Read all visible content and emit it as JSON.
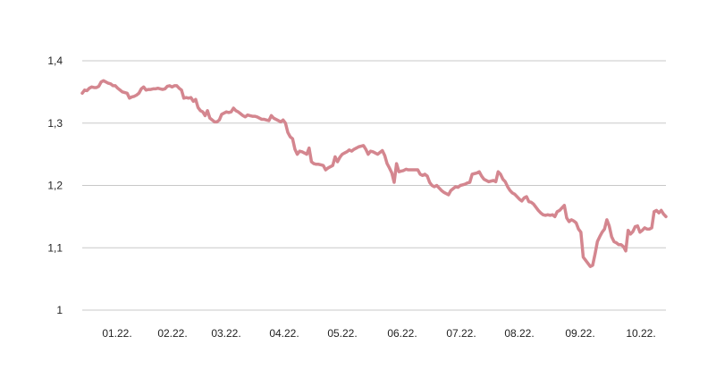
{
  "chart_data": {
    "type": "line",
    "title": "",
    "xlabel": "",
    "ylabel": "",
    "ylim": [
      1.0,
      1.4
    ],
    "yticks": [
      1.0,
      1.1,
      1.2,
      1.3,
      1.4
    ],
    "ytick_labels": [
      "1",
      "1,1",
      "1,2",
      "1,3",
      "1,4"
    ],
    "xtick_labels": [
      "01.22.",
      "02.22.",
      "03.22.",
      "04.22.",
      "05.22.",
      "06.22.",
      "07.22.",
      "08.22.",
      "09.22.",
      "10.22."
    ],
    "grid": "horizontal",
    "line_color": "#d4868f",
    "series": [
      {
        "values": [
          1.348,
          1.353,
          1.352,
          1.356,
          1.358,
          1.357,
          1.357,
          1.359,
          1.366,
          1.368,
          1.366,
          1.364,
          1.363,
          1.36,
          1.36,
          1.356,
          1.353,
          1.35,
          1.349,
          1.348,
          1.34,
          1.342,
          1.343,
          1.345,
          1.348,
          1.355,
          1.358,
          1.353,
          1.354,
          1.354,
          1.355,
          1.355,
          1.356,
          1.355,
          1.354,
          1.355,
          1.359,
          1.36,
          1.358,
          1.36,
          1.36,
          1.356,
          1.353,
          1.34,
          1.341,
          1.34,
          1.341,
          1.335,
          1.338,
          1.325,
          1.32,
          1.318,
          1.312,
          1.32,
          1.308,
          1.305,
          1.302,
          1.302,
          1.305,
          1.314,
          1.316,
          1.318,
          1.317,
          1.318,
          1.324,
          1.32,
          1.318,
          1.315,
          1.312,
          1.31,
          1.313,
          1.312,
          1.311,
          1.311,
          1.31,
          1.308,
          1.306,
          1.306,
          1.305,
          1.304,
          1.312,
          1.308,
          1.306,
          1.304,
          1.302,
          1.305,
          1.3,
          1.285,
          1.278,
          1.275,
          1.258,
          1.25,
          1.255,
          1.254,
          1.252,
          1.25,
          1.26,
          1.238,
          1.235,
          1.234,
          1.234,
          1.233,
          1.232,
          1.225,
          1.228,
          1.23,
          1.232,
          1.246,
          1.238,
          1.245,
          1.25,
          1.252,
          1.254,
          1.257,
          1.255,
          1.258,
          1.26,
          1.262,
          1.263,
          1.264,
          1.258,
          1.25,
          1.255,
          1.254,
          1.252,
          1.25,
          1.253,
          1.256,
          1.248,
          1.235,
          1.228,
          1.22,
          1.205,
          1.235,
          1.222,
          1.223,
          1.224,
          1.226,
          1.225,
          1.225,
          1.225,
          1.225,
          1.225,
          1.218,
          1.216,
          1.218,
          1.215,
          1.205,
          1.2,
          1.198,
          1.2,
          1.196,
          1.192,
          1.189,
          1.187,
          1.185,
          1.192,
          1.195,
          1.198,
          1.197,
          1.2,
          1.201,
          1.202,
          1.204,
          1.205,
          1.218,
          1.219,
          1.22,
          1.222,
          1.215,
          1.21,
          1.208,
          1.206,
          1.207,
          1.208,
          1.206,
          1.222,
          1.218,
          1.21,
          1.206,
          1.198,
          1.192,
          1.188,
          1.186,
          1.182,
          1.178,
          1.175,
          1.18,
          1.182,
          1.174,
          1.173,
          1.17,
          1.165,
          1.16,
          1.156,
          1.153,
          1.152,
          1.153,
          1.152,
          1.153,
          1.15,
          1.158,
          1.16,
          1.164,
          1.168,
          1.148,
          1.142,
          1.145,
          1.143,
          1.14,
          1.13,
          1.125,
          1.085,
          1.08,
          1.075,
          1.07,
          1.072,
          1.09,
          1.11,
          1.118,
          1.125,
          1.13,
          1.145,
          1.135,
          1.118,
          1.11,
          1.108,
          1.105,
          1.105,
          1.102,
          1.095,
          1.128,
          1.122,
          1.126,
          1.134,
          1.135,
          1.125,
          1.128,
          1.132,
          1.13,
          1.13,
          1.132,
          1.158,
          1.16,
          1.156,
          1.16,
          1.154,
          1.15
        ]
      }
    ]
  }
}
